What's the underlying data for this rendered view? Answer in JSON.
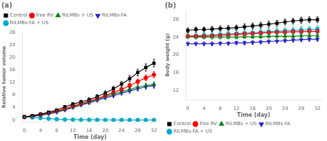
{
  "chart_data": [
    {
      "type": "line",
      "title": "(a)",
      "xlabel": "Time (day)",
      "ylabel": "Relative tumor volume",
      "x": [
        0,
        2,
        4,
        6,
        8,
        10,
        12,
        14,
        16,
        18,
        20,
        22,
        24,
        26,
        28,
        30,
        32
      ],
      "xlim": [
        -0.5,
        33
      ],
      "xticks": [
        0,
        4,
        8,
        12,
        16,
        20,
        24,
        28,
        32
      ],
      "ylim": [
        -0.5,
        28
      ],
      "yticks": [
        0,
        4,
        8,
        12,
        16,
        20,
        24,
        28
      ],
      "grid": false,
      "legend": "upper left",
      "series": [
        {
          "name": "Control",
          "color": "#000000",
          "marker": "square",
          "values": [
            1.0,
            1.4,
            1.9,
            2.5,
            3.2,
            4.2,
            5.1,
            5.8,
            6.5,
            7.5,
            8.6,
            10.0,
            11.5,
            13.2,
            15.2,
            16.8,
            18.2
          ],
          "errors": [
            0.08,
            0.15,
            0.2,
            0.28,
            0.35,
            0.42,
            0.48,
            0.52,
            0.58,
            0.65,
            0.72,
            0.8,
            0.88,
            0.95,
            1.05,
            1.15,
            1.2
          ]
        },
        {
          "name": "free RV",
          "color": "#ff0000",
          "marker": "circle",
          "values": [
            1.0,
            1.3,
            1.8,
            2.3,
            2.9,
            3.6,
            4.5,
            5.3,
            6.0,
            6.9,
            7.8,
            8.8,
            9.8,
            11.0,
            12.3,
            13.5,
            14.5
          ],
          "errors": [
            0.08,
            0.12,
            0.18,
            0.22,
            0.28,
            0.32,
            0.38,
            0.42,
            0.48,
            0.52,
            0.58,
            0.65,
            0.7,
            0.78,
            0.85,
            0.92,
            1.0
          ]
        },
        {
          "name": "RILMBs + US",
          "color": "#008000",
          "marker": "triangle-up",
          "values": [
            1.0,
            1.2,
            1.6,
            2.1,
            2.7,
            3.4,
            4.2,
            5.0,
            5.8,
            6.6,
            7.5,
            8.3,
            9.1,
            9.8,
            10.5,
            11.0,
            11.4
          ],
          "errors": [
            0.08,
            0.1,
            0.15,
            0.18,
            0.22,
            0.28,
            0.32,
            0.38,
            0.42,
            0.48,
            0.52,
            0.58,
            0.62,
            0.68,
            0.72,
            0.78,
            0.82
          ]
        },
        {
          "name": "RILMBs-FA",
          "color": "#2222cc",
          "marker": "triangle-down",
          "values": [
            1.0,
            1.15,
            1.5,
            1.95,
            2.5,
            3.2,
            4.0,
            4.8,
            5.5,
            6.3,
            7.1,
            7.8,
            8.6,
            9.3,
            10.0,
            10.6,
            11.0
          ],
          "errors": [
            0.08,
            0.1,
            0.14,
            0.18,
            0.22,
            0.26,
            0.3,
            0.35,
            0.4,
            0.44,
            0.5,
            0.54,
            0.58,
            0.64,
            0.68,
            0.72,
            0.78
          ]
        },
        {
          "name": "RILMBs-FA + US",
          "color": "#00aacc",
          "marker": "circle",
          "values": [
            1.0,
            0.85,
            0.65,
            0.45,
            0.3,
            0.2,
            0.15,
            0.1,
            0.08,
            0.06,
            0.05,
            0.04,
            0.03,
            0.02,
            0.02,
            0.01,
            0.01
          ],
          "errors": [
            0.08,
            0.07,
            0.06,
            0.05,
            0.04,
            0.03,
            0.02,
            0.02,
            0.01,
            0.01,
            0.01,
            0.01,
            0.01,
            0.01,
            0.01,
            0.01,
            0.01
          ]
        }
      ]
    },
    {
      "type": "line",
      "title": "(b)",
      "xlabel": "Time (day)",
      "ylabel": "Body weight (g)",
      "x": [
        0,
        2,
        4,
        6,
        8,
        10,
        12,
        14,
        16,
        18,
        20,
        22,
        24,
        26,
        28,
        30,
        32
      ],
      "xlim": [
        -0.5,
        33
      ],
      "xticks": [
        0,
        4,
        8,
        12,
        16,
        20,
        24,
        28,
        32
      ],
      "ylim": [
        10,
        30
      ],
      "yticks": [
        12,
        16,
        20,
        24,
        28
      ],
      "grid": false,
      "legend": "lower left",
      "series": [
        {
          "name": "Control",
          "color": "#000000",
          "marker": "square",
          "values": [
            25.5,
            25.7,
            25.7,
            25.8,
            25.9,
            26.0,
            26.1,
            26.3,
            26.5,
            26.7,
            26.9,
            27.1,
            27.4,
            27.6,
            27.8,
            27.9,
            27.9
          ],
          "errors": [
            0.55,
            0.55,
            0.55,
            0.55,
            0.6,
            0.6,
            0.6,
            0.65,
            0.65,
            0.65,
            0.65,
            0.65,
            0.65,
            0.65,
            0.65,
            0.65,
            0.65
          ]
        },
        {
          "name": "free RV",
          "color": "#ff0000",
          "marker": "circle",
          "values": [
            24.2,
            24.2,
            24.2,
            24.3,
            24.4,
            24.5,
            24.6,
            24.7,
            24.8,
            24.9,
            25.0,
            25.1,
            25.1,
            25.2,
            25.2,
            25.3,
            25.3
          ],
          "errors": [
            0.4,
            0.4,
            0.4,
            0.4,
            0.4,
            0.4,
            0.4,
            0.4,
            0.4,
            0.4,
            0.4,
            0.4,
            0.4,
            0.4,
            0.4,
            0.4,
            0.4
          ]
        },
        {
          "name": "RILMBs + US",
          "color": "#008000",
          "marker": "triangle-up",
          "values": [
            24.1,
            24.0,
            24.0,
            24.0,
            24.0,
            24.0,
            24.0,
            24.1,
            24.1,
            24.1,
            24.2,
            24.2,
            24.2,
            24.2,
            24.3,
            24.3,
            24.3
          ],
          "errors": [
            0.4,
            0.4,
            0.4,
            0.4,
            0.4,
            0.4,
            0.4,
            0.4,
            0.4,
            0.4,
            0.4,
            0.4,
            0.4,
            0.4,
            0.4,
            0.4,
            0.4
          ]
        },
        {
          "name": "RILMBs-FA",
          "color": "#2222cc",
          "marker": "triangle-down",
          "values": [
            22.5,
            22.5,
            22.5,
            22.5,
            22.6,
            22.6,
            22.7,
            22.7,
            22.8,
            22.9,
            23.0,
            23.1,
            23.2,
            23.3,
            23.4,
            23.5,
            23.5
          ],
          "errors": [
            0.4,
            0.4,
            0.4,
            0.4,
            0.4,
            0.4,
            0.4,
            0.4,
            0.4,
            0.4,
            0.4,
            0.4,
            0.4,
            0.4,
            0.4,
            0.4,
            0.4
          ]
        },
        {
          "name": "RILMBs-FA + US",
          "color": "#00aacc",
          "marker": "circle",
          "values": [
            24.2,
            24.3,
            24.4,
            24.5,
            24.6,
            24.7,
            24.8,
            24.9,
            25.0,
            25.1,
            25.2,
            25.3,
            25.4,
            25.5,
            25.6,
            25.7,
            25.8
          ],
          "errors": [
            0.55,
            0.6,
            0.65,
            0.65,
            0.7,
            0.7,
            0.7,
            0.7,
            0.7,
            0.7,
            0.7,
            0.7,
            0.7,
            0.7,
            0.7,
            0.7,
            0.7
          ]
        }
      ]
    }
  ]
}
